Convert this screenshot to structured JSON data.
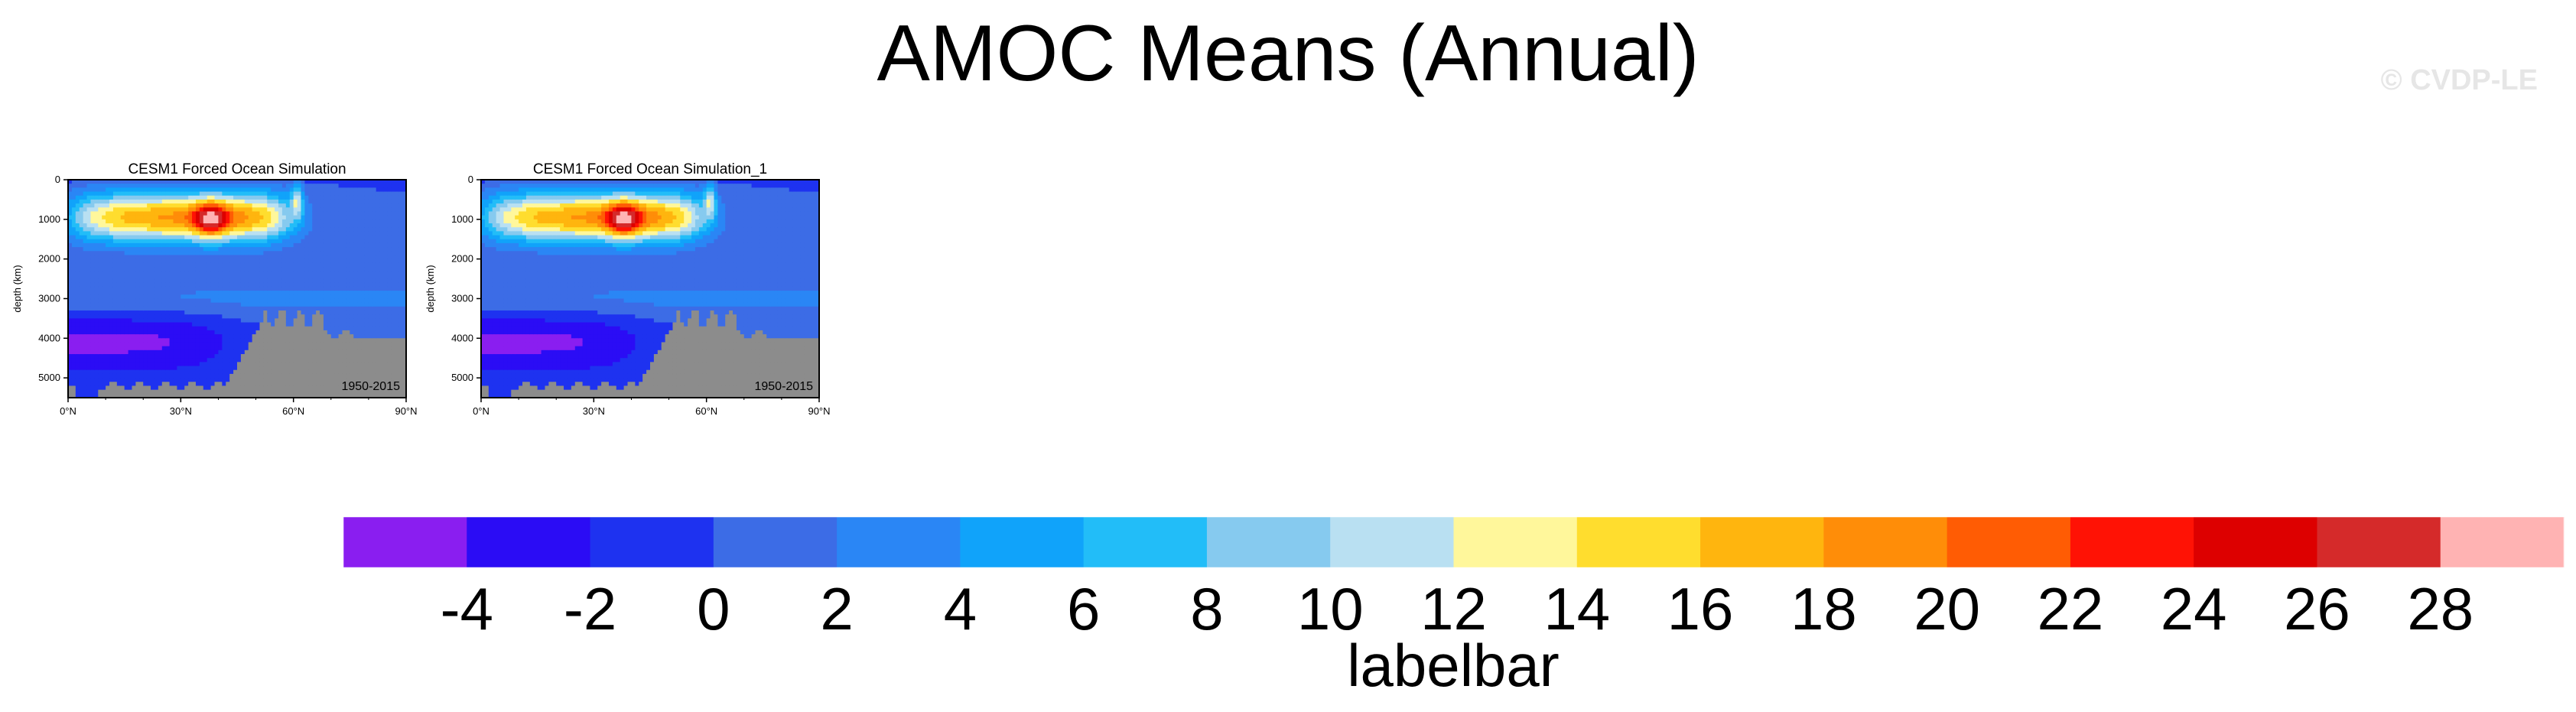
{
  "page": {
    "title": "AMOC Means (Annual)",
    "watermark": "© CVDP-LE"
  },
  "chart_data": {
    "type": "heatmap",
    "panels": [
      {
        "title": "CESM1 Forced Ocean Simulation",
        "period": "1950-2015",
        "ylabel": "depth (km)",
        "x_ticks": [
          "0°N",
          "30°N",
          "60°N",
          "90°N"
        ],
        "y_ticks": [
          "0",
          "1000",
          "2000",
          "3000",
          "4000",
          "5000"
        ],
        "xlim": [
          0,
          90
        ],
        "ylim": [
          5500,
          0
        ]
      },
      {
        "title": "CESM1 Forced Ocean Simulation_1",
        "period": "1950-2015",
        "ylabel": "depth (km)",
        "x_ticks": [
          "0°N",
          "30°N",
          "60°N",
          "90°N"
        ],
        "y_ticks": [
          "0",
          "1000",
          "2000",
          "3000",
          "4000",
          "5000"
        ],
        "xlim": [
          0,
          90
        ],
        "ylim": [
          5500,
          0
        ]
      }
    ],
    "colorbar": {
      "title": "labelbar",
      "levels": [
        -4,
        -2,
        0,
        2,
        4,
        6,
        8,
        10,
        12,
        14,
        16,
        18,
        20,
        22,
        24,
        26,
        28
      ],
      "labels": [
        "-4",
        "-2",
        "0",
        "2",
        "4",
        "6",
        "8",
        "10",
        "12",
        "14",
        "16",
        "18",
        "20",
        "22",
        "24",
        "26",
        "28"
      ],
      "colors": [
        "#8a1ef0",
        "#2b0cf5",
        "#1e32f0",
        "#3c6ce6",
        "#2a86f5",
        "#10a3fa",
        "#22bdf8",
        "#86caef",
        "#b9e0f2",
        "#fff79b",
        "#ffdd2e",
        "#ffb50e",
        "#ff8d08",
        "#ff5c04",
        "#ff1205",
        "#dd0000",
        "#d52a2a",
        "#ffb3b3"
      ]
    }
  }
}
